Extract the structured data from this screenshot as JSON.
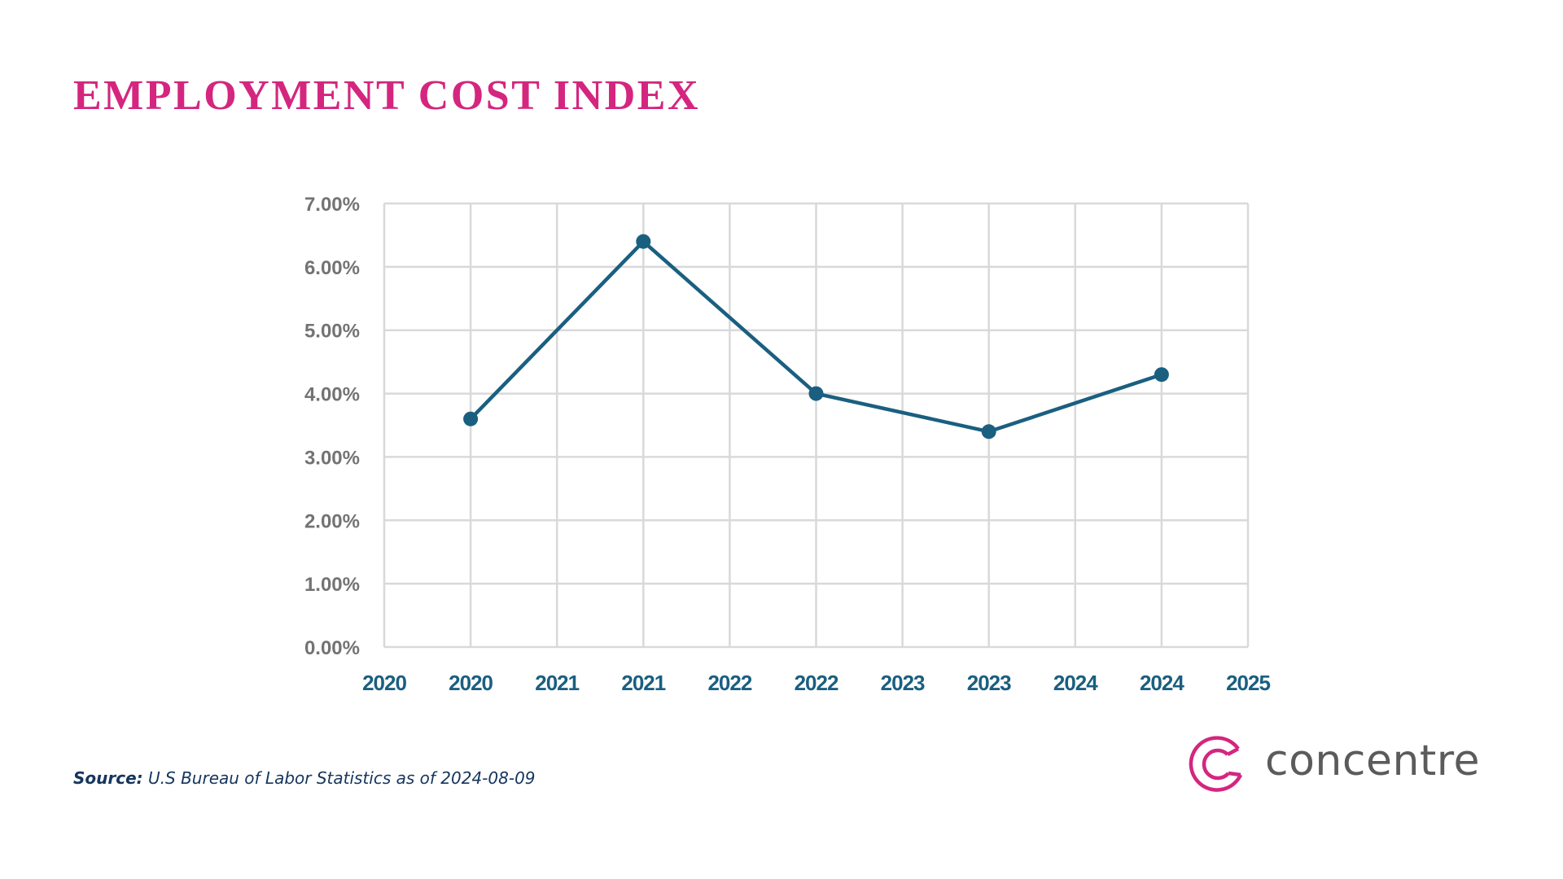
{
  "header": {
    "title": "EMPLOYMENT COST INDEX"
  },
  "chart_data": {
    "type": "line",
    "title": "EMPLOYMENT COST INDEX",
    "xlabel": "",
    "ylabel": "",
    "x_tick_labels": [
      "2020",
      "2020",
      "2021",
      "2021",
      "2022",
      "2022",
      "2023",
      "2023",
      "2024",
      "2024",
      "2025"
    ],
    "y_tick_labels": [
      "0.00%",
      "1.00%",
      "2.00%",
      "3.00%",
      "4.00%",
      "5.00%",
      "6.00%",
      "7.00%"
    ],
    "ylim": [
      0,
      7
    ],
    "grid": true,
    "legend": "none",
    "series": [
      {
        "name": "Employment Cost Index",
        "color": "#1a5f80",
        "points": [
          {
            "tick_index": 1,
            "label": "2020",
            "value": 3.6
          },
          {
            "tick_index": 3,
            "label": "2021",
            "value": 6.4
          },
          {
            "tick_index": 5,
            "label": "2022",
            "value": 4.0
          },
          {
            "tick_index": 7,
            "label": "2023",
            "value": 3.4
          },
          {
            "tick_index": 9,
            "label": "2024",
            "value": 4.3
          }
        ]
      }
    ]
  },
  "footer": {
    "source_lead": "Source:",
    "source_text": " U.S Bureau of Labor Statistics as of  2024-08-09"
  },
  "brand": {
    "name": "concentre",
    "logo_icon": "concentric-c-icon",
    "accent_color": "#d4267f",
    "text_color": "#5b5b5b"
  }
}
